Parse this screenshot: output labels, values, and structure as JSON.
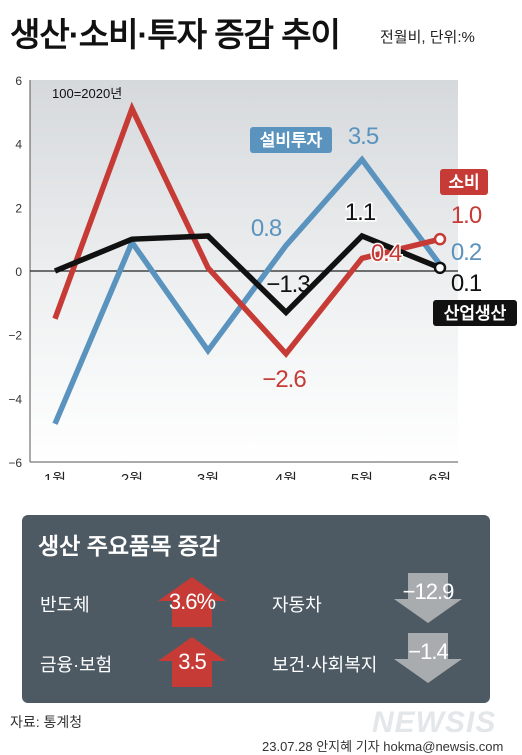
{
  "header": {
    "title": "생산·소비·투자 증감 추이",
    "unit": "전월비, 단위:%"
  },
  "chart_data": {
    "type": "line",
    "categories": [
      "1월",
      "2월",
      "3월",
      "4월",
      "5월",
      "6월"
    ],
    "ylim": [
      -6,
      6
    ],
    "yticks": [
      6,
      4,
      2,
      0,
      -2,
      -4,
      -6
    ],
    "y_tick_labels": [
      "6",
      "4",
      "2",
      "0",
      "−2",
      "−4",
      "−6"
    ],
    "note": "100=2020년",
    "grid": false,
    "series": [
      {
        "name": "설비투자",
        "color": "#5b93bf",
        "values": [
          -4.8,
          0.9,
          -2.5,
          0.8,
          3.5,
          0.2
        ]
      },
      {
        "name": "소비",
        "color": "#c63b36",
        "values": [
          -1.5,
          5.1,
          0.1,
          -2.6,
          0.4,
          1.0
        ]
      },
      {
        "name": "산업생산",
        "color": "#111111",
        "values": [
          0.0,
          1.0,
          1.1,
          -1.3,
          1.1,
          0.1
        ]
      }
    ],
    "data_labels": [
      {
        "text": "0.8",
        "series": 0,
        "index": 3
      },
      {
        "text": "3.5",
        "series": 0,
        "index": 4
      },
      {
        "text": "0.2",
        "series": 0,
        "index": 5
      },
      {
        "text": "−2.6",
        "series": 1,
        "index": 3
      },
      {
        "text": "0.4",
        "series": 1,
        "index": 4
      },
      {
        "text": "1.0",
        "series": 1,
        "index": 5
      },
      {
        "text": "−1.3",
        "series": 2,
        "index": 3
      },
      {
        "text": "1.1",
        "series": 2,
        "index": 4
      },
      {
        "text": "0.1",
        "series": 2,
        "index": 5
      }
    ]
  },
  "panel": {
    "title": "생산 주요품목 증감",
    "items": [
      {
        "label": "반도체",
        "value": "3.6%",
        "direction": "up",
        "color": "#c63b36"
      },
      {
        "label": "자동차",
        "value": "−12.9",
        "direction": "down",
        "color": "#a9acae"
      },
      {
        "label": "금융·보험",
        "value": "3.5",
        "direction": "up",
        "color": "#c63b36"
      },
      {
        "label": "보건·사회복지",
        "value": "−1.4",
        "direction": "down",
        "color": "#a9acae"
      }
    ]
  },
  "footer": {
    "source": "자료: 통계청",
    "logo": "NEWSIS",
    "credit": "23.07.28 안지혜 기자 hokma@newsis.com"
  }
}
